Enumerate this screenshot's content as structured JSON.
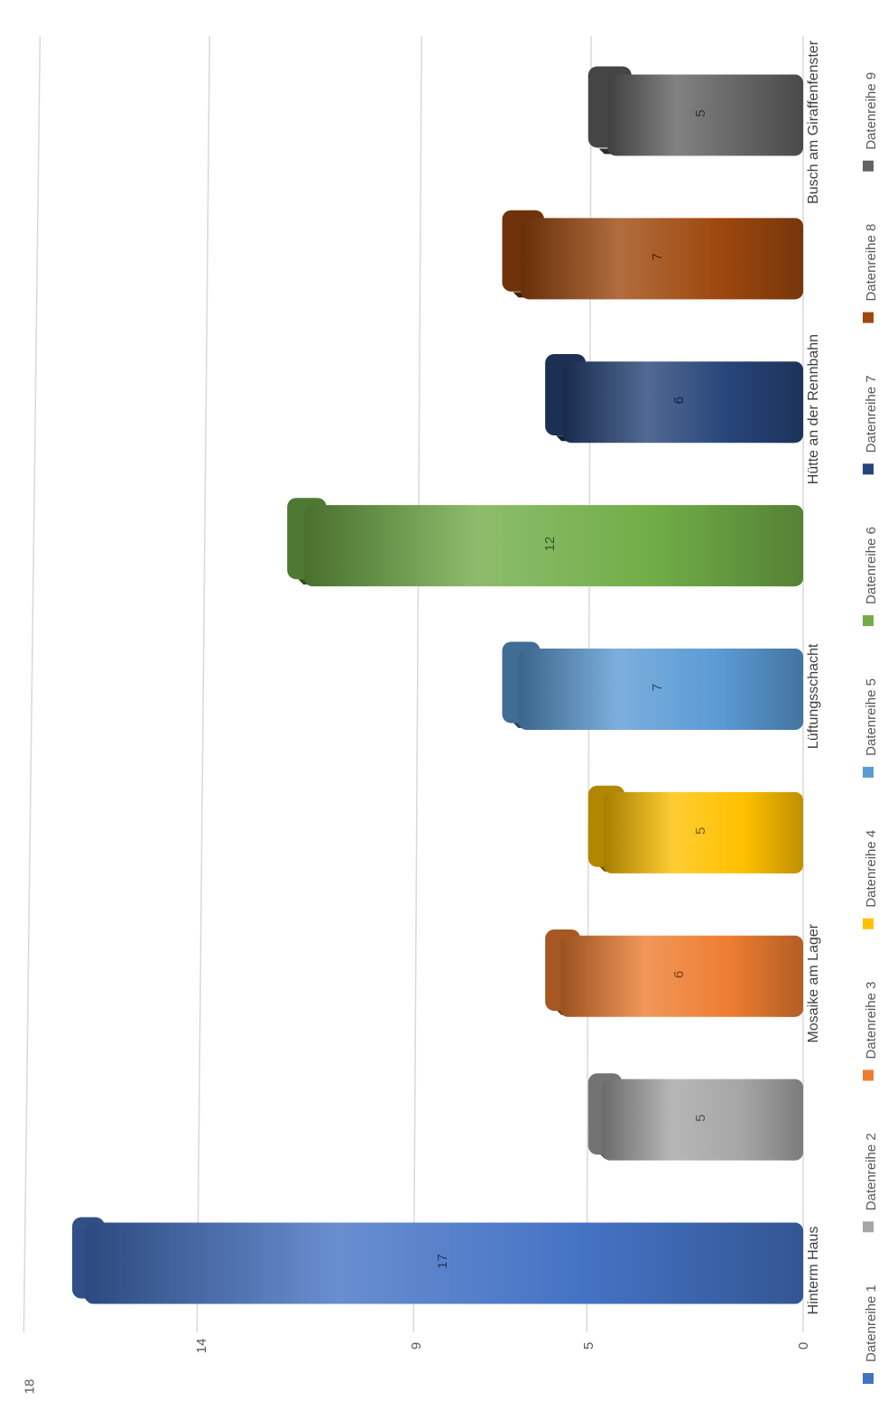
{
  "chart_data": {
    "type": "bar",
    "orientation": "horizontal-rotated",
    "y_ticks": [
      "0",
      "5",
      "9",
      "14",
      "18"
    ],
    "ylim": [
      0,
      18
    ],
    "grid": true,
    "legend_placement": "bottom",
    "category_labels": [
      {
        "label": "Hinterm Haus",
        "after_series": 0
      },
      {
        "label": "Mosaike am Lager",
        "after_series": 2
      },
      {
        "label": "Lüftungsschacht",
        "after_series": 4
      },
      {
        "label": "Hütte an der Rennbahn",
        "after_series": 6
      },
      {
        "label": "Busch am Giraffenfenster",
        "after_series": 8
      }
    ],
    "series": [
      {
        "name": "Datenreihe 1",
        "value": 17,
        "label": "17",
        "color": "#4472C4"
      },
      {
        "name": "Datenreihe 2",
        "value": 5,
        "label": "5",
        "color": "#A5A5A5"
      },
      {
        "name": "Datenreihe 3",
        "value": 6,
        "label": "6",
        "color": "#ED7D31"
      },
      {
        "name": "Datenreihe 4",
        "value": 5,
        "label": "5",
        "color": "#FFC000"
      },
      {
        "name": "Datenreihe 5",
        "value": 7,
        "label": "7",
        "color": "#5B9BD5"
      },
      {
        "name": "Datenreihe 6",
        "value": 12,
        "label": "12",
        "color": "#70AD47"
      },
      {
        "name": "Datenreihe 7",
        "value": 6,
        "label": "6",
        "color": "#264478"
      },
      {
        "name": "Datenreihe 8",
        "value": 7,
        "label": "7",
        "color": "#9E480E"
      },
      {
        "name": "Datenreihe 9",
        "value": 5,
        "label": "5",
        "color": "#636363"
      }
    ]
  }
}
